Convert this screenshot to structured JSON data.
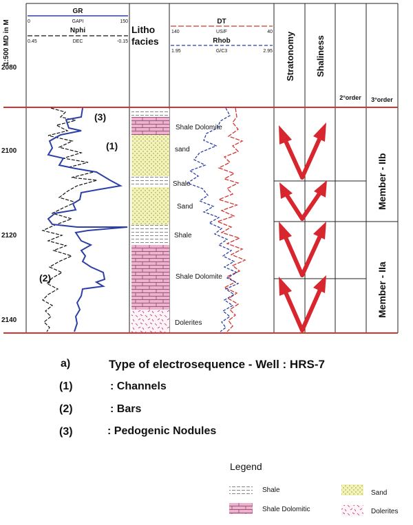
{
  "header": {
    "depth_label": "1:500 MD in M",
    "gr": {
      "name": "GR",
      "unit": "GAPI",
      "min": "0",
      "max": "150",
      "color": "#2b3fa6"
    },
    "nphi": {
      "name": "Nphi",
      "unit": "DEC",
      "min": "0.45",
      "max": "-0.15",
      "color": "#111111"
    },
    "litho": "Litho facies",
    "dt": {
      "name": "DT",
      "unit": "US/F",
      "min": "140",
      "max": "40",
      "color": "#d1342f"
    },
    "rhob": {
      "name": "Rhob",
      "unit": "G/C3",
      "min": "1.95",
      "max": "2.95",
      "color": "#2b3fa6"
    },
    "stratonomy": "Stratonomy",
    "shaliness": "Shaliness",
    "order2": "2°order",
    "order3": "3°order"
  },
  "depths": [
    "2080",
    "2100",
    "2120",
    "2140"
  ],
  "facies_labels": [
    "Shale Dolomite",
    "sand",
    "Shale",
    "Sand",
    "Shale",
    "Shale Dolomite",
    "Dolerites"
  ],
  "annotations": [
    "(3)",
    "(1)",
    "(2)"
  ],
  "members": [
    "Member - IIb",
    "Member - IIa"
  ],
  "caption": {
    "a": "a)",
    "title": "Type of electrosequence - Well : HRS-7",
    "items": [
      {
        "num": "(1)",
        "text": ":  Channels"
      },
      {
        "num": "(2)",
        "text": ":  Bars"
      },
      {
        "num": "(3)",
        "text": ":  Pedogenic Nodules"
      }
    ]
  },
  "legend": {
    "title": "Legend",
    "items": [
      "Shale",
      "Sand",
      "Shale Dolomitic",
      "Dolerites"
    ]
  },
  "colors": {
    "red_line": "#d1342f",
    "arrow": "#d8262f",
    "sand": "#f2f2b0",
    "dolomite": "#e8a8c8"
  }
}
